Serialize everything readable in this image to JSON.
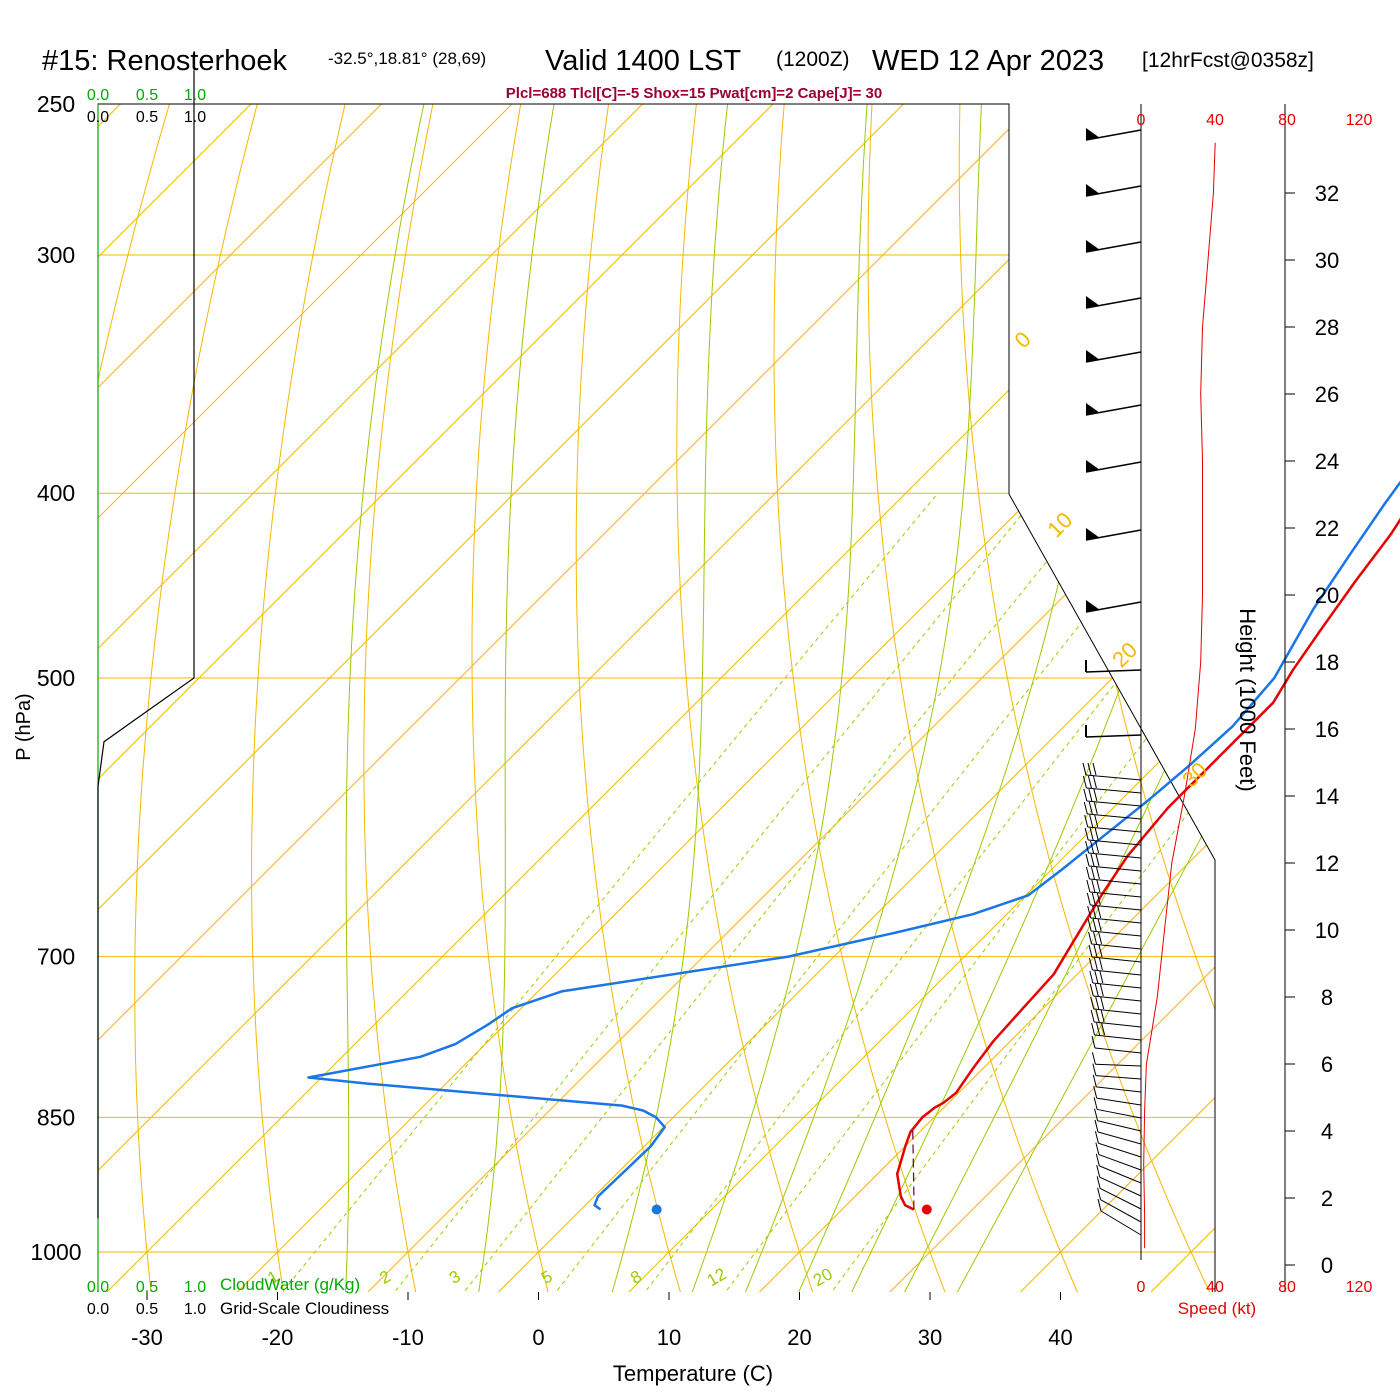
{
  "header": {
    "station": "#15: Renosterhoek",
    "coords": "-32.5°,18.81° (28,69)",
    "valid": "Valid 1400 LST",
    "zulu": "(1200Z)",
    "date": "WED 12 Apr 2023",
    "forecast": "[12hrFcst@0358z]"
  },
  "indices": "Plcl=688 Tlcl[C]=-5 Shox=15 Pwat[cm]=2 Cape[J]= 30",
  "colors": {
    "isotherm": "#f5b800",
    "dry_adiabat": "#f5b800",
    "moist_adiabat": "#99cc00",
    "mixing_ratio": "#99cc00",
    "temperature": "#e60000",
    "dewpoint": "#1a75e6",
    "parcel": "#660033",
    "cloudwater": "#00aa00",
    "cloudiness": "#000000",
    "wind_speed": "#e60000",
    "indices_text": "#990033"
  },
  "chart_data": {
    "type": "skew-t",
    "xlabel": "Temperature (C)",
    "ylabel": "P (hPa)",
    "y2label": "Height (1000 Feet)",
    "x_ticks": [
      "-30",
      "-20",
      "-10",
      "0",
      "10",
      "20",
      "30",
      "40"
    ],
    "x_tick_values": [
      -30,
      -20,
      -10,
      0,
      10,
      20,
      30,
      40
    ],
    "pressure_ticks": [
      "250",
      "300",
      "400",
      "500",
      "700",
      "850",
      "1000"
    ],
    "pressure_values": [
      250,
      300,
      400,
      500,
      700,
      850,
      1000
    ],
    "height_ticks": [
      "0",
      "2",
      "4",
      "6",
      "8",
      "10",
      "12",
      "14",
      "16",
      "18",
      "20",
      "22",
      "24",
      "26",
      "28",
      "30",
      "32"
    ],
    "height_values": [
      0,
      2,
      4,
      6,
      8,
      10,
      12,
      14,
      16,
      18,
      20,
      22,
      24,
      26,
      28,
      30,
      32
    ],
    "isotherm_labels": [
      "10",
      "0",
      "-10",
      "-20",
      "-30"
    ],
    "potential_temp_labels": [
      "0",
      "10",
      "20",
      "30"
    ],
    "mixing_ratio_labels": [
      "1",
      "2",
      "3",
      "5",
      "8",
      "12",
      "20"
    ],
    "mixing_ratio_values": [
      1,
      2,
      3,
      5,
      8,
      12,
      20
    ],
    "cloudwater": {
      "label": "CloudWater (g/Kg)",
      "ticks": [
        "0.0",
        "0.5",
        "1.0"
      ]
    },
    "cloudiness": {
      "label": "Grid-Scale Cloudiness",
      "ticks": [
        "0.0",
        "0.5",
        "1.0"
      ],
      "profile": [
        [
          0,
          960
        ],
        [
          0,
          570
        ],
        [
          0.05,
          540
        ],
        [
          0.8,
          500
        ],
        [
          0.8,
          240
        ]
      ]
    },
    "temperature_profile": [
      [
        25.5,
        950
      ],
      [
        24.5,
        945
      ],
      [
        23.5,
        935
      ],
      [
        21.5,
        910
      ],
      [
        20,
        880
      ],
      [
        19.3,
        865
      ],
      [
        19.1,
        850
      ],
      [
        19.3,
        840
      ],
      [
        19.6,
        835
      ],
      [
        19.8,
        825
      ],
      [
        19.2,
        800
      ],
      [
        18.7,
        775
      ],
      [
        18.4,
        740
      ],
      [
        18.2,
        715
      ],
      [
        17.3,
        690
      ],
      [
        15.8,
        650
      ],
      [
        14.8,
        620
      ],
      [
        14.2,
        585
      ],
      [
        14.2,
        545
      ],
      [
        14.2,
        515
      ],
      [
        13.2,
        495
      ],
      [
        12.2,
        470
      ],
      [
        11.2,
        445
      ],
      [
        10.3,
        420
      ],
      [
        9.2,
        400
      ],
      [
        7.8,
        380
      ],
      [
        5.2,
        350
      ],
      [
        2.7,
        325
      ],
      [
        0.2,
        305
      ],
      [
        -2.7,
        285
      ],
      [
        -5.2,
        270
      ],
      [
        -6.9,
        258
      ]
    ],
    "dewpoint_profile": [
      [
        1.5,
        950
      ],
      [
        0.7,
        945
      ],
      [
        0.3,
        935
      ],
      [
        0.4,
        910
      ],
      [
        0.5,
        880
      ],
      [
        0.1,
        860
      ],
      [
        -1.3,
        850
      ],
      [
        -2.8,
        843
      ],
      [
        -4.8,
        838
      ],
      [
        -26,
        816
      ],
      [
        -31,
        810
      ],
      [
        -24,
        790
      ],
      [
        -22.3,
        778
      ],
      [
        -21.3,
        760
      ],
      [
        -20.7,
        745
      ],
      [
        -18.2,
        730
      ],
      [
        -3.5,
        700
      ],
      [
        2.9,
        680
      ],
      [
        7.4,
        665
      ],
      [
        10.2,
        650
      ],
      [
        10.8,
        630
      ],
      [
        11.3,
        610
      ],
      [
        12.1,
        580
      ],
      [
        12.6,
        555
      ],
      [
        12.9,
        530
      ],
      [
        12.4,
        500
      ],
      [
        10.1,
        460
      ],
      [
        8.7,
        430
      ],
      [
        7.5,
        405
      ],
      [
        6.4,
        380
      ],
      [
        4.4,
        350
      ],
      [
        2.5,
        325
      ],
      [
        0.8,
        305
      ],
      [
        -2.4,
        280
      ],
      [
        -4.8,
        262
      ],
      [
        -6.9,
        254
      ]
    ],
    "parcel_profile": [
      [
        25.5,
        950
      ],
      [
        24.5,
        935
      ],
      [
        19.1,
        860
      ]
    ],
    "surface_temperature": 26.5,
    "surface_dewpoint": 5.8,
    "surface_pressure": 950,
    "wind_speed": {
      "label": "Speed (kt)",
      "ticks": [
        "0",
        "40",
        "80",
        "120"
      ],
      "profile": [
        [
          2,
          0.5
        ],
        [
          2,
          1.5
        ],
        [
          1.5,
          3
        ],
        [
          2,
          4.6
        ],
        [
          3,
          6
        ],
        [
          6,
          7
        ],
        [
          9,
          8
        ],
        [
          13,
          10
        ],
        [
          17,
          12
        ],
        [
          24,
          14
        ],
        [
          30,
          16
        ],
        [
          33,
          18
        ],
        [
          34,
          20
        ],
        [
          34,
          22
        ],
        [
          34,
          24
        ],
        [
          33,
          26
        ],
        [
          34,
          28
        ],
        [
          37,
          30
        ],
        [
          40,
          32
        ],
        [
          41,
          33.5
        ]
      ]
    }
  }
}
